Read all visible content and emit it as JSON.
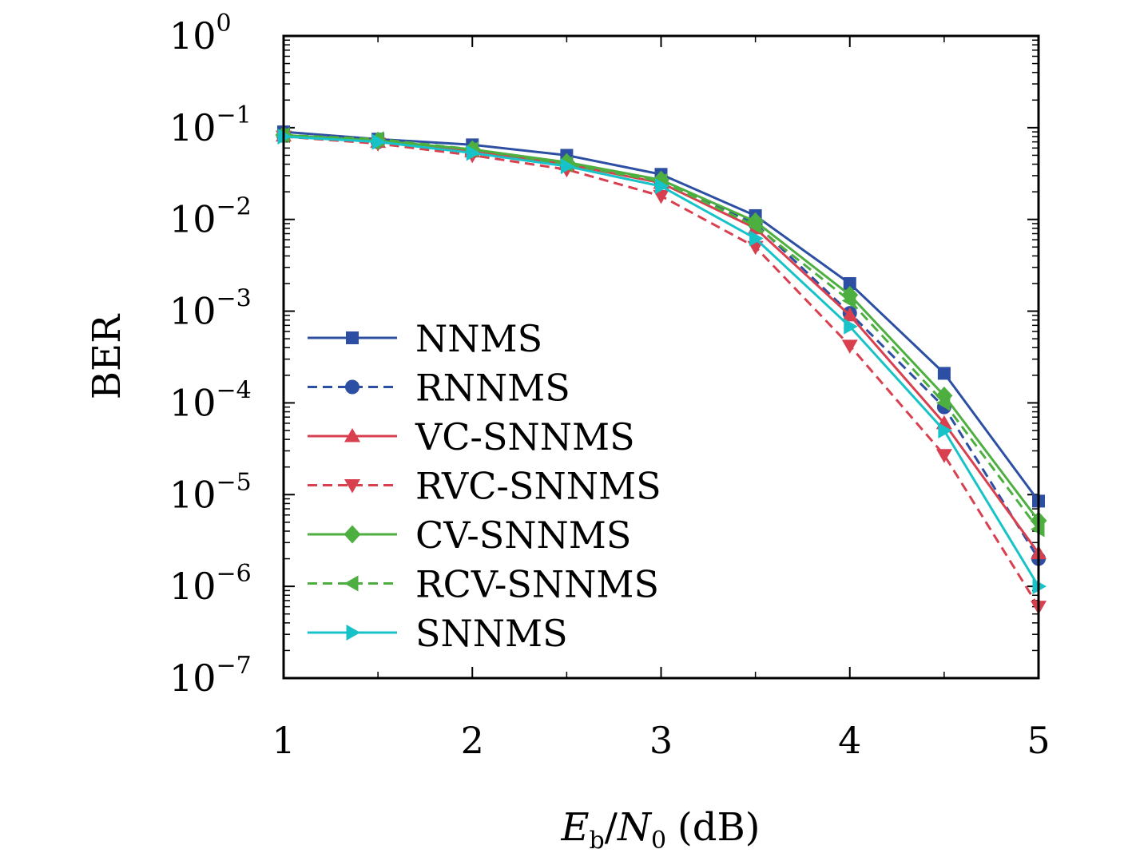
{
  "chart_data": {
    "type": "line",
    "xlabel": "E_b/N_0 (dB)",
    "xlabel_parts": {
      "e": "E",
      "e_sub": "b",
      "slash": "/",
      "n": "N",
      "n_sub": "0",
      "unit": "(dB)"
    },
    "ylabel": "BER",
    "y_scale": "log",
    "xlim": [
      1,
      5
    ],
    "ylim": [
      1e-07,
      1
    ],
    "x_ticks": [
      1,
      2,
      3,
      4,
      5
    ],
    "x_tick_labels": [
      "1",
      "2",
      "3",
      "4",
      "5"
    ],
    "y_ticks": [
      {
        "value": 1,
        "base": "10",
        "exp": "0"
      },
      {
        "value": 0.1,
        "base": "10",
        "exp": "−1"
      },
      {
        "value": 0.01,
        "base": "10",
        "exp": "−2"
      },
      {
        "value": 0.001,
        "base": "10",
        "exp": "−3"
      },
      {
        "value": 0.0001,
        "base": "10",
        "exp": "−4"
      },
      {
        "value": 1e-05,
        "base": "10",
        "exp": "−5"
      },
      {
        "value": 1e-06,
        "base": "10",
        "exp": "−6"
      },
      {
        "value": 1e-07,
        "base": "10",
        "exp": "−7"
      }
    ],
    "grid": false,
    "legend_position": "lower-left",
    "x": [
      1,
      1.5,
      2,
      2.5,
      3,
      3.5,
      4,
      4.5,
      5
    ],
    "series": [
      {
        "name": "NNMS",
        "color": "#2d4fa3",
        "dash": "solid",
        "marker": "square",
        "values": [
          0.09,
          0.075,
          0.065,
          0.05,
          0.031,
          0.011,
          0.002,
          0.00021,
          8.5e-06
        ]
      },
      {
        "name": "RNNMS",
        "color": "#2d4fa3",
        "dash": "dashed",
        "marker": "circle",
        "values": [
          0.082,
          0.07,
          0.055,
          0.04,
          0.026,
          0.009,
          0.00095,
          9e-05,
          2e-06
        ]
      },
      {
        "name": "VC-SNNMS",
        "color": "#d9404f",
        "dash": "solid",
        "marker": "triangle-up",
        "values": [
          0.082,
          0.07,
          0.055,
          0.04,
          0.025,
          0.008,
          0.0009,
          6e-05,
          2.3e-06
        ]
      },
      {
        "name": "RVC-SNNMS",
        "color": "#d9404f",
        "dash": "dashed",
        "marker": "triangle-down",
        "values": [
          0.08,
          0.067,
          0.05,
          0.035,
          0.018,
          0.005,
          0.00042,
          2.7e-05,
          6e-07
        ]
      },
      {
        "name": "CV-SNNMS",
        "color": "#4caf3f",
        "dash": "solid",
        "marker": "diamond",
        "values": [
          0.083,
          0.072,
          0.058,
          0.042,
          0.027,
          0.0095,
          0.0015,
          0.00012,
          5.2e-06
        ]
      },
      {
        "name": "RCV-SNNMS",
        "color": "#4caf3f",
        "dash": "dashed",
        "marker": "triangle-left",
        "values": [
          0.083,
          0.075,
          0.058,
          0.04,
          0.026,
          0.0085,
          0.0013,
          0.0001,
          4.2e-06
        ]
      },
      {
        "name": "SNNMS",
        "color": "#17c3c8",
        "dash": "solid",
        "marker": "triangle-right",
        "values": [
          0.08,
          0.07,
          0.053,
          0.038,
          0.023,
          0.0062,
          0.00068,
          5e-05,
          1e-06
        ]
      }
    ]
  }
}
